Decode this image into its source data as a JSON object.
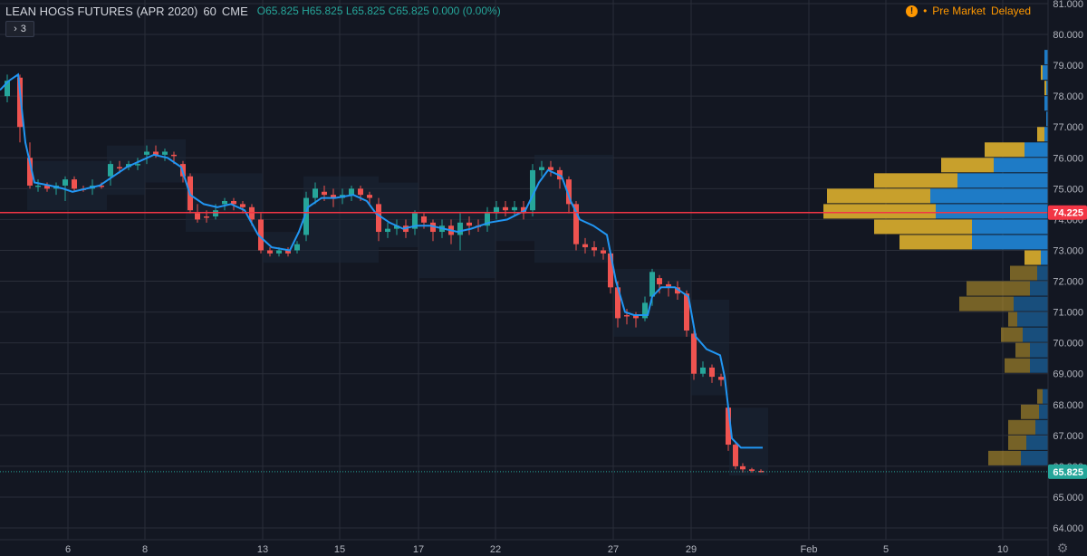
{
  "header": {
    "symbol": "LEAN HOGS FUTURES (APR 2020)",
    "interval": "60",
    "exchange": "CME",
    "open": "O65.825",
    "high": "H65.825",
    "low": "L65.825",
    "close": "C65.825",
    "change": "0.000 (0.00%)"
  },
  "indicators_button": {
    "arrow": "›",
    "count": "3"
  },
  "status": {
    "icon": "!",
    "label": "Pre Market",
    "mode": "Delayed"
  },
  "colors": {
    "background": "#131722",
    "grid": "#2a2e39",
    "up": "#26a69a",
    "down": "#ef5350",
    "ma_line": "#2196f3",
    "poc_line": "#f23645",
    "vp_up": "#c8a02c",
    "vp_down": "#1e7bc6",
    "last_price": "#26a69a"
  },
  "chart_data": {
    "type": "candlestick",
    "y_axis": {
      "min": 63.5,
      "max": 81.0,
      "ticks": [
        "64.000",
        "65.000",
        "66.000",
        "67.000",
        "68.000",
        "69.000",
        "70.000",
        "71.000",
        "72.000",
        "73.000",
        "74.000",
        "75.000",
        "76.000",
        "77.000",
        "78.000",
        "79.000",
        "80.000",
        "81.000"
      ]
    },
    "x_axis": {
      "labels": [
        "6",
        "8",
        "13",
        "15",
        "17",
        "22",
        "27",
        "29",
        "Feb",
        "5",
        "10"
      ]
    },
    "price_labels": {
      "poc": "74.225",
      "last": "65.825"
    },
    "poc_value": 74.225,
    "last_value": 65.825,
    "ma_points": [
      [
        0,
        78.2
      ],
      [
        10,
        78.5
      ],
      [
        20,
        78.7
      ],
      [
        28,
        76.5
      ],
      [
        38,
        75.2
      ],
      [
        55,
        75.1
      ],
      [
        70,
        75.0
      ],
      [
        80,
        74.9
      ],
      [
        95,
        75.0
      ],
      [
        110,
        75.1
      ],
      [
        125,
        75.4
      ],
      [
        140,
        75.7
      ],
      [
        155,
        75.9
      ],
      [
        170,
        76.1
      ],
      [
        185,
        76.0
      ],
      [
        200,
        75.7
      ],
      [
        210,
        74.8
      ],
      [
        225,
        74.5
      ],
      [
        240,
        74.4
      ],
      [
        255,
        74.5
      ],
      [
        270,
        74.3
      ],
      [
        285,
        73.5
      ],
      [
        300,
        73.1
      ],
      [
        320,
        73.0
      ],
      [
        330,
        73.6
      ],
      [
        340,
        74.4
      ],
      [
        355,
        74.7
      ],
      [
        370,
        74.7
      ],
      [
        390,
        74.8
      ],
      [
        405,
        74.6
      ],
      [
        415,
        74.2
      ],
      [
        430,
        73.9
      ],
      [
        445,
        73.7
      ],
      [
        460,
        73.8
      ],
      [
        475,
        73.8
      ],
      [
        490,
        73.7
      ],
      [
        505,
        73.6
      ],
      [
        520,
        73.7
      ],
      [
        540,
        73.9
      ],
      [
        560,
        74.0
      ],
      [
        580,
        74.3
      ],
      [
        595,
        75.2
      ],
      [
        605,
        75.6
      ],
      [
        620,
        75.4
      ],
      [
        630,
        74.6
      ],
      [
        640,
        74.0
      ],
      [
        655,
        73.8
      ],
      [
        670,
        73.5
      ],
      [
        680,
        72.0
      ],
      [
        690,
        71.0
      ],
      [
        700,
        70.9
      ],
      [
        715,
        70.9
      ],
      [
        720,
        71.5
      ],
      [
        730,
        71.8
      ],
      [
        745,
        71.8
      ],
      [
        760,
        71.5
      ],
      [
        768,
        70.2
      ],
      [
        780,
        69.8
      ],
      [
        795,
        69.6
      ],
      [
        800,
        68.9
      ],
      [
        808,
        66.9
      ],
      [
        818,
        66.6
      ],
      [
        842,
        66.6
      ]
    ],
    "candles": [
      [
        8,
        78.0,
        78.5,
        77.8,
        78.7,
        1
      ],
      [
        22,
        78.6,
        77.0,
        76.5,
        78.7,
        0
      ],
      [
        33,
        76.0,
        75.1,
        75.0,
        76.5,
        0
      ],
      [
        42,
        75.1,
        75.1,
        74.9,
        75.3,
        1
      ],
      [
        52,
        75.1,
        75.0,
        74.9,
        75.2,
        0
      ],
      [
        62,
        75.0,
        75.1,
        74.8,
        75.2,
        1
      ],
      [
        72,
        75.1,
        75.3,
        74.6,
        75.4,
        1
      ],
      [
        82,
        75.3,
        75.0,
        74.9,
        75.4,
        0
      ],
      [
        92,
        75.0,
        75.0,
        74.9,
        75.1,
        0
      ],
      [
        102,
        75.0,
        75.1,
        74.8,
        75.3,
        1
      ],
      [
        112,
        75.1,
        75.1,
        75.0,
        75.2,
        0
      ],
      [
        122,
        75.4,
        75.8,
        75.1,
        75.9,
        1
      ],
      [
        132,
        75.7,
        75.7,
        75.5,
        75.9,
        0
      ],
      [
        142,
        75.7,
        75.8,
        75.6,
        75.9,
        1
      ],
      [
        152,
        75.8,
        75.8,
        75.6,
        76.0,
        1
      ],
      [
        162,
        76.1,
        76.2,
        75.8,
        76.4,
        1
      ],
      [
        172,
        76.2,
        76.1,
        76.0,
        76.4,
        0
      ],
      [
        182,
        76.1,
        76.2,
        75.9,
        76.3,
        1
      ],
      [
        192,
        76.1,
        76.1,
        75.8,
        76.2,
        0
      ],
      [
        202,
        75.8,
        75.4,
        75.2,
        75.9,
        0
      ],
      [
        210,
        75.4,
        74.3,
        74.2,
        75.5,
        0
      ],
      [
        218,
        74.2,
        74.0,
        73.9,
        74.5,
        0
      ],
      [
        228,
        74.1,
        74.1,
        73.9,
        74.3,
        0
      ],
      [
        238,
        74.1,
        74.3,
        74.0,
        74.5,
        1
      ],
      [
        248,
        74.5,
        74.6,
        74.3,
        74.7,
        1
      ],
      [
        258,
        74.6,
        74.5,
        74.3,
        74.7,
        0
      ],
      [
        268,
        74.5,
        74.4,
        74.2,
        74.6,
        0
      ],
      [
        278,
        74.4,
        74.0,
        73.8,
        74.5,
        0
      ],
      [
        288,
        74.0,
        73.0,
        72.9,
        74.2,
        0
      ],
      [
        298,
        73.0,
        72.9,
        72.8,
        73.1,
        0
      ],
      [
        308,
        72.9,
        73.0,
        72.8,
        73.1,
        1
      ],
      [
        318,
        73.0,
        72.9,
        72.8,
        73.1,
        0
      ],
      [
        328,
        73.0,
        73.2,
        72.9,
        73.3,
        1
      ],
      [
        338,
        73.5,
        74.7,
        73.3,
        74.9,
        1
      ],
      [
        348,
        74.7,
        75.0,
        74.5,
        75.2,
        1
      ],
      [
        358,
        74.9,
        74.8,
        74.6,
        75.1,
        0
      ],
      [
        368,
        74.8,
        74.7,
        74.4,
        75.0,
        0
      ],
      [
        378,
        74.7,
        74.8,
        74.5,
        75.0,
        1
      ],
      [
        388,
        74.8,
        75.0,
        74.6,
        75.1,
        1
      ],
      [
        398,
        75.0,
        74.8,
        74.6,
        75.1,
        0
      ],
      [
        408,
        74.8,
        74.7,
        74.5,
        74.9,
        0
      ],
      [
        418,
        74.5,
        73.6,
        73.3,
        74.7,
        0
      ],
      [
        428,
        73.6,
        73.7,
        73.4,
        73.9,
        1
      ],
      [
        438,
        73.7,
        73.8,
        73.5,
        74.0,
        1
      ],
      [
        448,
        73.8,
        73.6,
        73.4,
        74.0,
        0
      ],
      [
        458,
        73.7,
        74.2,
        73.5,
        74.3,
        1
      ],
      [
        468,
        74.1,
        73.9,
        73.7,
        74.2,
        0
      ],
      [
        478,
        73.9,
        73.6,
        73.3,
        74.0,
        0
      ],
      [
        488,
        73.6,
        73.8,
        73.4,
        74.0,
        1
      ],
      [
        498,
        73.8,
        73.5,
        73.2,
        74.0,
        0
      ],
      [
        508,
        73.5,
        73.9,
        73.0,
        74.2,
        1
      ],
      [
        518,
        73.9,
        73.8,
        73.5,
        74.1,
        0
      ],
      [
        528,
        73.8,
        73.8,
        73.6,
        74.0,
        0
      ],
      [
        538,
        73.8,
        74.2,
        73.6,
        74.4,
        1
      ],
      [
        548,
        74.2,
        74.4,
        74.0,
        74.6,
        1
      ],
      [
        558,
        74.4,
        74.3,
        74.1,
        74.6,
        0
      ],
      [
        568,
        74.3,
        74.4,
        74.1,
        74.6,
        1
      ],
      [
        578,
        74.4,
        74.2,
        74.0,
        74.6,
        0
      ],
      [
        588,
        74.3,
        75.6,
        74.1,
        75.8,
        1
      ],
      [
        598,
        75.6,
        75.7,
        75.4,
        75.9,
        1
      ],
      [
        608,
        75.7,
        75.6,
        75.4,
        75.9,
        0
      ],
      [
        618,
        75.6,
        75.3,
        75.0,
        75.7,
        0
      ],
      [
        628,
        75.3,
        74.5,
        74.2,
        75.4,
        0
      ],
      [
        636,
        74.5,
        73.2,
        73.0,
        74.6,
        0
      ],
      [
        646,
        73.2,
        73.1,
        72.9,
        73.4,
        0
      ],
      [
        656,
        73.1,
        73.0,
        72.8,
        73.3,
        0
      ],
      [
        666,
        73.0,
        72.9,
        72.7,
        73.1,
        0
      ],
      [
        674,
        72.9,
        71.8,
        71.6,
        73.0,
        0
      ],
      [
        682,
        71.8,
        70.8,
        70.5,
        72.0,
        0
      ],
      [
        692,
        70.9,
        70.9,
        70.6,
        71.1,
        0
      ],
      [
        702,
        70.9,
        70.8,
        70.5,
        71.0,
        0
      ],
      [
        712,
        70.8,
        71.3,
        70.7,
        71.5,
        1
      ],
      [
        720,
        71.5,
        72.3,
        71.2,
        72.4,
        1
      ],
      [
        728,
        72.1,
        71.9,
        71.6,
        72.2,
        0
      ],
      [
        738,
        71.9,
        71.8,
        71.5,
        72.0,
        0
      ],
      [
        748,
        71.8,
        71.6,
        71.4,
        72.0,
        0
      ],
      [
        758,
        71.6,
        70.4,
        70.2,
        71.7,
        0
      ],
      [
        766,
        70.3,
        69.0,
        68.8,
        70.4,
        0
      ],
      [
        776,
        69.0,
        69.2,
        68.9,
        69.4,
        1
      ],
      [
        786,
        69.2,
        68.9,
        68.7,
        69.3,
        0
      ],
      [
        796,
        68.9,
        68.8,
        68.6,
        69.0,
        0
      ],
      [
        804,
        67.9,
        66.7,
        66.5,
        68.0,
        0
      ],
      [
        812,
        66.7,
        66.0,
        65.9,
        66.8,
        0
      ],
      [
        820,
        66.0,
        65.9,
        65.8,
        66.1,
        0
      ],
      [
        830,
        65.9,
        65.85,
        65.8,
        65.95,
        0
      ],
      [
        840,
        65.85,
        65.825,
        65.8,
        65.9,
        0
      ]
    ],
    "volume_profile": [
      [
        81.0,
        0,
        0
      ],
      [
        80.0,
        0,
        0
      ],
      [
        79.0,
        0,
        4
      ],
      [
        78.5,
        2,
        6
      ],
      [
        78.0,
        2,
        2
      ],
      [
        77.5,
        0,
        4
      ],
      [
        77.0,
        0,
        2
      ],
      [
        76.5,
        8,
        4
      ],
      [
        76.0,
        44,
        26
      ],
      [
        75.5,
        58,
        60
      ],
      [
        75.0,
        92,
        100
      ],
      [
        74.5,
        114,
        130
      ],
      [
        74.0,
        124,
        124
      ],
      [
        73.5,
        108,
        84
      ],
      [
        73.0,
        80,
        84
      ],
      [
        72.5,
        18,
        8
      ],
      [
        72.0,
        30,
        12
      ],
      [
        71.5,
        70,
        20
      ],
      [
        71.0,
        60,
        38
      ],
      [
        70.5,
        10,
        34
      ],
      [
        70.0,
        24,
        28
      ],
      [
        69.5,
        16,
        20
      ],
      [
        69.0,
        28,
        20
      ],
      [
        68.5,
        0,
        0
      ],
      [
        68.0,
        6,
        6
      ],
      [
        67.5,
        20,
        10
      ],
      [
        67.0,
        30,
        14
      ],
      [
        66.5,
        20,
        24
      ],
      [
        66.0,
        36,
        30
      ]
    ]
  }
}
